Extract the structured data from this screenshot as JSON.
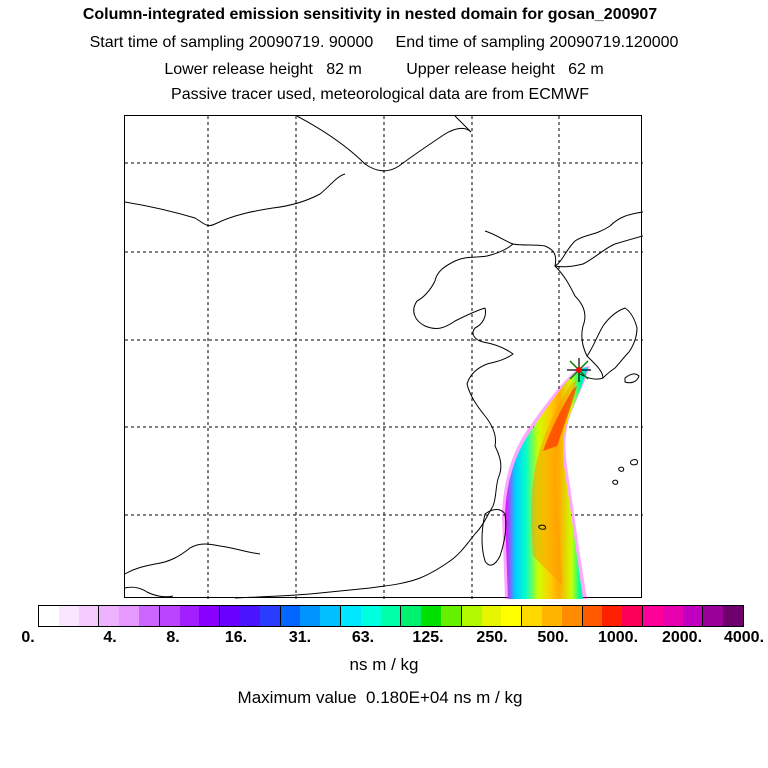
{
  "header": {
    "title": "Column-integrated emission sensitivity in nested domain for gosan_200907",
    "line2": "Start time of sampling 20090719. 90000     End time of sampling 20090719.120000",
    "line3": "Lower release height   82 m          Upper release height   62 m",
    "line4": "Passive tracer used, meteorological data are from ECMWF"
  },
  "map": {
    "release_site": "gosan",
    "marker_color": "#ff0000"
  },
  "colorbar": {
    "colors": [
      "#ffffff",
      "#fbe6ff",
      "#f5ccff",
      "#eeb3ff",
      "#e699ff",
      "#cc66ff",
      "#bb44ff",
      "#a220ff",
      "#8a00ff",
      "#6a00ff",
      "#4a14ff",
      "#2a3cff",
      "#0066ff",
      "#0094ff",
      "#00c0ff",
      "#00e8ff",
      "#00ffe0",
      "#00ffa8",
      "#00f070",
      "#00e000",
      "#66f000",
      "#b2f800",
      "#e6f500",
      "#ffff00",
      "#ffd800",
      "#ffb400",
      "#ff8c00",
      "#ff5a00",
      "#ff2000",
      "#ff0058",
      "#ff0099",
      "#e600b0",
      "#c000c0",
      "#9a009a",
      "#6e006e"
    ],
    "tick_labels": [
      "0.",
      "4.",
      "8.",
      "16.",
      "31.",
      "63.",
      "125.",
      "250.",
      "500.",
      "1000.",
      "2000.",
      "4000."
    ],
    "units": "ns m / kg"
  },
  "footer": {
    "max_value": "Maximum value  0.180E+04 ns m / kg"
  }
}
